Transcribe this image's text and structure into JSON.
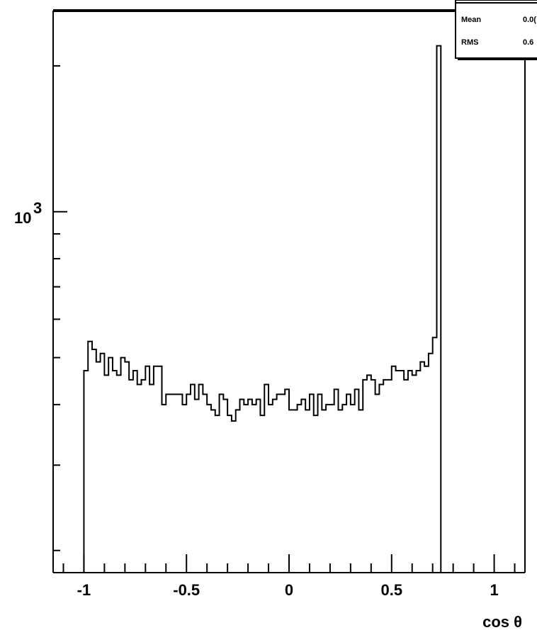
{
  "chart_data": {
    "type": "line",
    "style": "step-histogram",
    "xlabel": "cos θ",
    "xlim": [
      -1.15,
      1.15
    ],
    "ylim": [
      180,
      2600
    ],
    "yscale": "log",
    "grid": false,
    "x_ticks": [
      {
        "value": -1,
        "label": "-1"
      },
      {
        "value": -0.5,
        "label": "-0.5"
      },
      {
        "value": 0,
        "label": "0"
      },
      {
        "value": 0.5,
        "label": "0.5"
      },
      {
        "value": 1,
        "label": "1"
      }
    ],
    "y_labeled_ticks": [
      {
        "value": 1000,
        "base": "10",
        "exponent": "3"
      }
    ],
    "stats_box": {
      "position": "top-right",
      "rows": [
        {
          "label": "Mean",
          "value": "0.0("
        },
        {
          "label": "RMS",
          "value": "0.6"
        }
      ]
    },
    "bin_width": 0.02,
    "x_start": -1.0,
    "values": [
      470,
      540,
      520,
      490,
      510,
      460,
      500,
      470,
      460,
      500,
      490,
      450,
      470,
      440,
      450,
      480,
      440,
      480,
      480,
      400,
      420,
      420,
      420,
      420,
      400,
      420,
      440,
      410,
      440,
      420,
      400,
      390,
      380,
      420,
      410,
      380,
      370,
      390,
      410,
      400,
      410,
      400,
      410,
      380,
      440,
      400,
      410,
      420,
      420,
      430,
      390,
      390,
      400,
      410,
      390,
      420,
      380,
      420,
      390,
      400,
      400,
      430,
      390,
      400,
      420,
      400,
      430,
      390,
      450,
      460,
      450,
      420,
      440,
      450,
      450,
      480,
      470,
      470,
      450,
      470,
      460,
      470,
      490,
      480,
      510,
      550,
      2200
    ]
  }
}
